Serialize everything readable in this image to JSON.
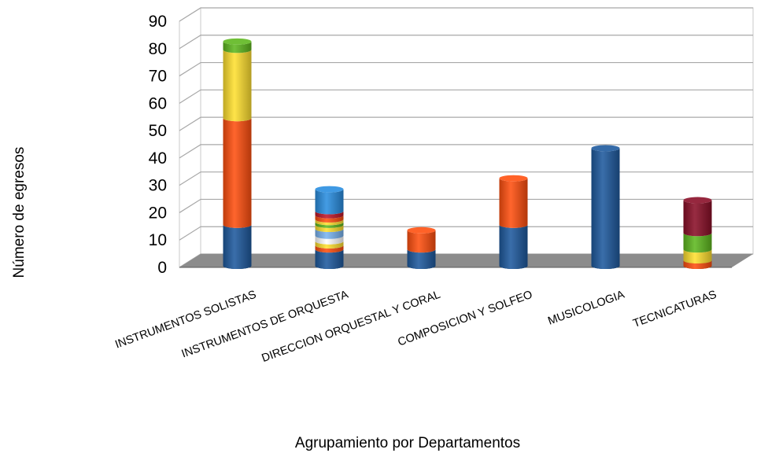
{
  "chart_data": {
    "type": "bar",
    "stacked": true,
    "three_d": true,
    "xlabel": "Agrupamiento por Departamentos",
    "ylabel": "Número de egresos",
    "ylim": [
      0,
      90
    ],
    "yticks": [
      0,
      10,
      20,
      30,
      40,
      50,
      60,
      70,
      80,
      90
    ],
    "grid": true,
    "categories": [
      "INSTRUMENTOS SOLISTAS",
      "INSTRUMENTOS DE ORQUESTA",
      "DIRECCION ORQUESTAL Y CORAL",
      "COMPOSICION Y SOLFEO",
      "MUSICOLOGIA",
      "TECNICATURAS"
    ],
    "stacks": [
      [
        {
          "value": 15,
          "color": "#1f5a9e"
        },
        {
          "value": 39,
          "color": "#ff5010"
        },
        {
          "value": 25,
          "color": "#ffe030"
        },
        {
          "value": 3,
          "color": "#5fb820"
        }
      ],
      [
        {
          "value": 6,
          "color": "#1f5a9e"
        },
        {
          "value": 1.5,
          "color": "#ff5010"
        },
        {
          "value": 1.5,
          "color": "#ffe030"
        },
        {
          "value": 2,
          "color": "#ffffff"
        },
        {
          "value": 2.5,
          "color": "#7ab4f0"
        },
        {
          "value": 1.5,
          "color": "#ffe030"
        },
        {
          "value": 1,
          "color": "#5fb820"
        },
        {
          "value": 1,
          "color": "#ffe030"
        },
        {
          "value": 1.5,
          "color": "#ff5010"
        },
        {
          "value": 1.5,
          "color": "#c0182a"
        },
        {
          "value": 8,
          "color": "#2a8ee0"
        }
      ],
      [
        {
          "value": 6,
          "color": "#1f5a9e"
        },
        {
          "value": 7,
          "color": "#ff5010"
        }
      ],
      [
        {
          "value": 15,
          "color": "#1f5a9e"
        },
        {
          "value": 17,
          "color": "#ff5010"
        }
      ],
      [
        {
          "value": 43,
          "color": "#1f5a9e"
        }
      ],
      [
        {
          "value": 2,
          "color": "#ff5010"
        },
        {
          "value": 4,
          "color": "#ffe030"
        },
        {
          "value": 6,
          "color": "#5fb820"
        },
        {
          "value": 12,
          "color": "#8a0f28"
        }
      ]
    ]
  }
}
